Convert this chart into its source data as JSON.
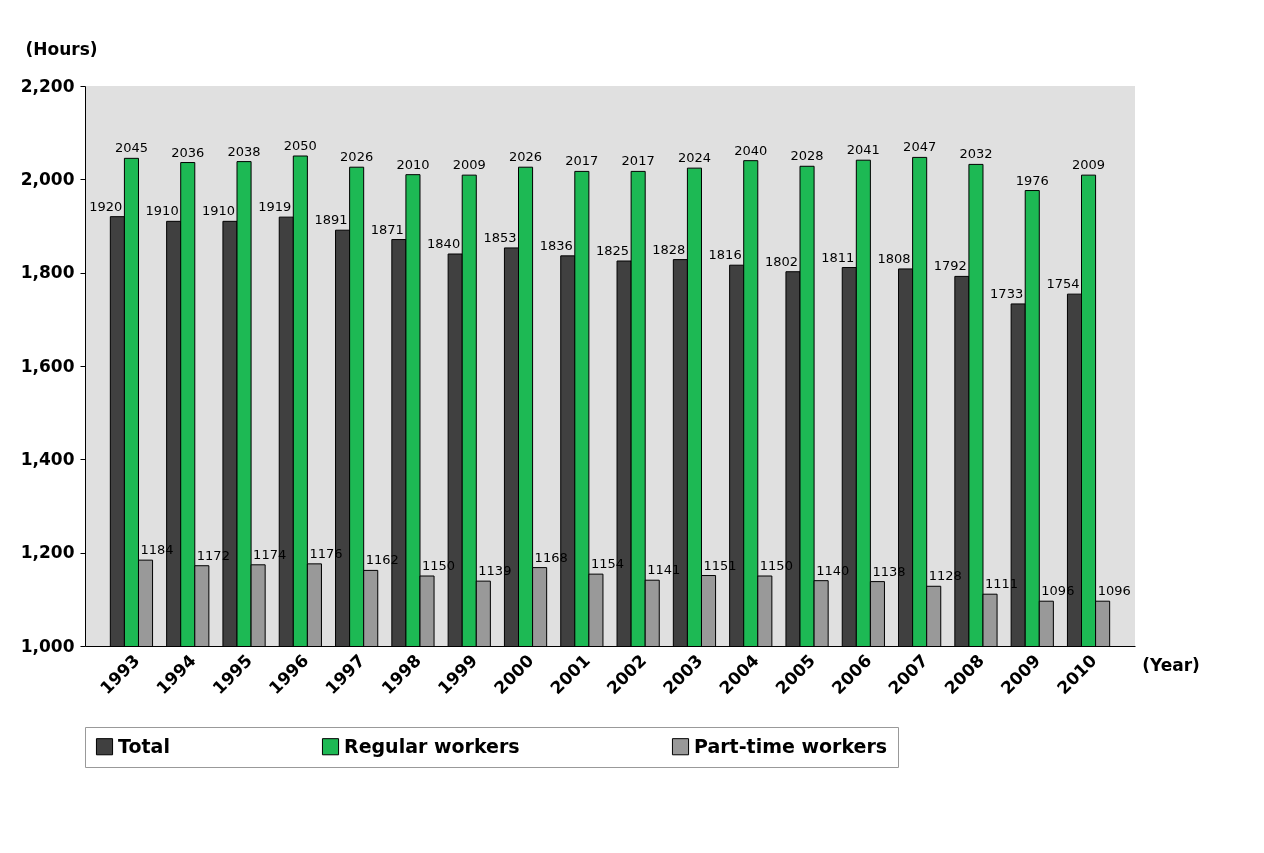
{
  "chart_data": {
    "type": "bar",
    "ylabel": "(Hours)",
    "xlabel": "(Year)",
    "categories": [
      "1993",
      "1994",
      "1995",
      "1996",
      "1997",
      "1998",
      "1999",
      "2000",
      "2001",
      "2002",
      "2003",
      "2004",
      "2005",
      "2006",
      "2007",
      "2008",
      "2009",
      "2010"
    ],
    "series": [
      {
        "name": "Total",
        "color": "#404040",
        "values": [
          1920,
          1910,
          1910,
          1919,
          1891,
          1871,
          1840,
          1853,
          1836,
          1825,
          1828,
          1816,
          1802,
          1811,
          1808,
          1792,
          1733,
          1754
        ]
      },
      {
        "name": "Regular workers",
        "color": "#1db954",
        "values": [
          2045,
          2036,
          2038,
          2050,
          2026,
          2010,
          2009,
          2026,
          2017,
          2017,
          2024,
          2040,
          2028,
          2041,
          2047,
          2032,
          1976,
          2009
        ]
      },
      {
        "name": "Part-time workers",
        "color": "#999999",
        "values": [
          1184,
          1172,
          1174,
          1176,
          1162,
          1150,
          1139,
          1168,
          1154,
          1141,
          1151,
          1150,
          1140,
          1138,
          1128,
          1111,
          1096,
          1096
        ]
      }
    ],
    "ylim": [
      1000,
      2200
    ],
    "yticks": [
      {
        "value": 1000,
        "label": "1,000"
      },
      {
        "value": 1200,
        "label": "1,200"
      },
      {
        "value": 1400,
        "label": "1,400"
      },
      {
        "value": 1600,
        "label": "1,600"
      },
      {
        "value": 1800,
        "label": "1,800"
      },
      {
        "value": 2000,
        "label": "2,000"
      },
      {
        "value": 2200,
        "label": "2,200"
      }
    ],
    "data_labels": true,
    "grid": false,
    "legend": "bottom"
  }
}
